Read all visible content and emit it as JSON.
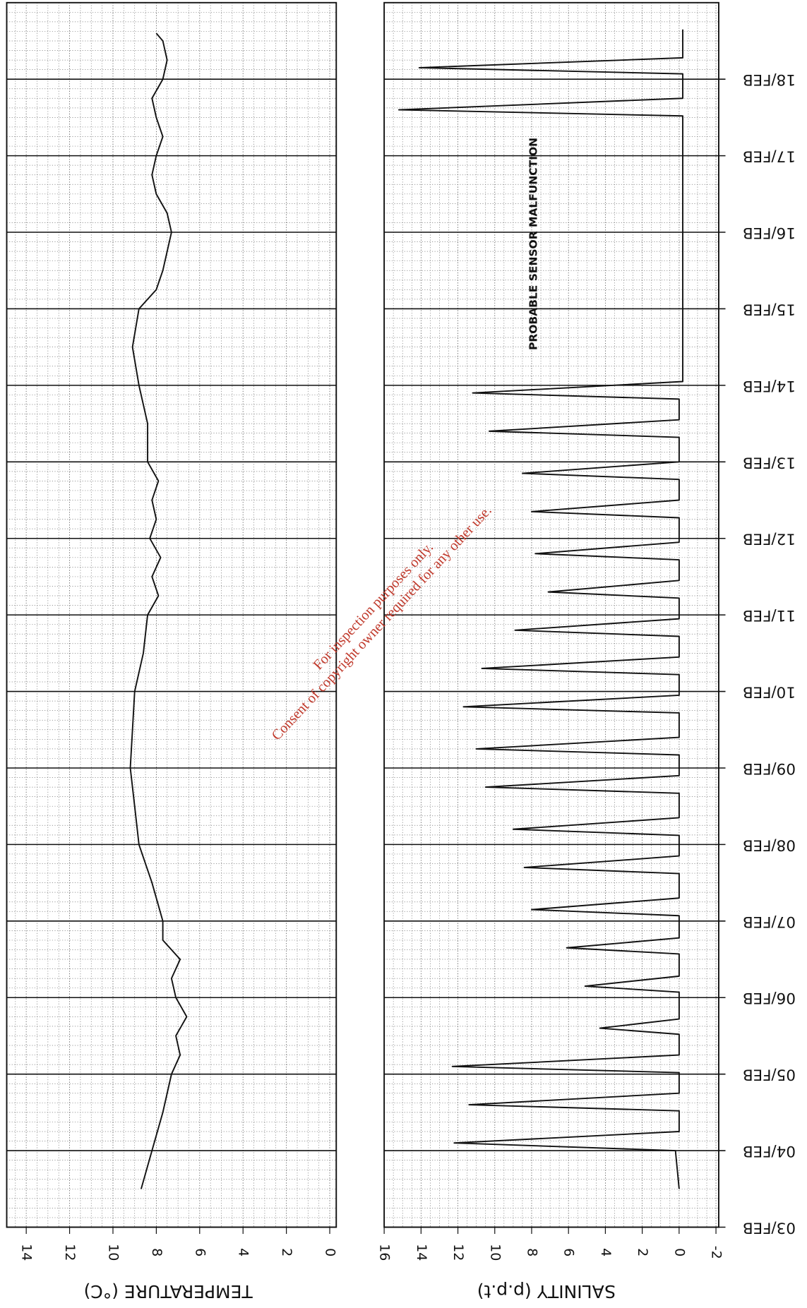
{
  "chart_data": [
    {
      "type": "line",
      "axis_title": "TEMPERATURE (°C)",
      "color": "#111111",
      "x": [
        3.5,
        4.0,
        4.5,
        5.0,
        5.25,
        5.5,
        5.75,
        6.0,
        6.25,
        6.5,
        6.75,
        7.0,
        7.5,
        8.0,
        8.5,
        9.0,
        9.5,
        10.0,
        10.5,
        11.0,
        11.25,
        11.5,
        11.75,
        12.0,
        12.25,
        12.5,
        12.75,
        13.0,
        13.5,
        14.0,
        14.5,
        15.0,
        15.25,
        15.5,
        16.0,
        16.25,
        16.5,
        16.75,
        17.0,
        17.25,
        17.5,
        17.75,
        18.0,
        18.25,
        18.5,
        18.6
      ],
      "values": [
        8.7,
        8.2,
        7.7,
        7.3,
        6.9,
        7.1,
        6.6,
        7.1,
        7.3,
        6.9,
        7.7,
        7.7,
        8.2,
        8.8,
        9.0,
        9.2,
        9.1,
        9.0,
        8.6,
        8.4,
        7.9,
        8.2,
        7.8,
        8.3,
        8.0,
        8.2,
        7.9,
        8.4,
        8.4,
        8.8,
        9.1,
        8.8,
        8.0,
        7.7,
        7.3,
        7.5,
        8.0,
        8.2,
        8.0,
        7.7,
        8.0,
        8.2,
        7.7,
        7.5,
        7.7,
        8.0
      ],
      "xlim": [
        3,
        19
      ],
      "xticks": [
        3,
        4,
        5,
        6,
        7,
        8,
        9,
        10,
        11,
        12,
        13,
        14,
        15,
        16,
        17,
        18
      ],
      "ylim": [
        -0.3,
        14.9
      ],
      "yticks": [
        0,
        2,
        4,
        6,
        8,
        10,
        12,
        14
      ],
      "grid": true
    },
    {
      "type": "line",
      "axis_title": "SALINITY (p.p.t)",
      "color": "#111111",
      "annotation": "PROBABLE SENSOR MALFUNCTION",
      "x": [
        3.5,
        4.0,
        4.1,
        4.25,
        4.52,
        4.6,
        4.75,
        5.02,
        5.1,
        5.25,
        5.52,
        5.6,
        5.72,
        6.07,
        6.15,
        6.28,
        6.57,
        6.65,
        6.78,
        7.07,
        7.15,
        7.3,
        7.62,
        7.7,
        7.85,
        8.12,
        8.2,
        8.35,
        8.67,
        8.75,
        8.9,
        9.17,
        9.25,
        9.4,
        9.72,
        9.8,
        9.95,
        10.22,
        10.3,
        10.45,
        10.72,
        10.8,
        10.95,
        11.22,
        11.3,
        11.45,
        11.72,
        11.8,
        11.95,
        12.27,
        12.35,
        12.5,
        12.77,
        12.85,
        13.0,
        13.32,
        13.4,
        13.55,
        13.82,
        13.9,
        14.05,
        17.52,
        17.6,
        17.75,
        18.07,
        18.15,
        18.28,
        18.65
      ],
      "values": [
        0,
        0.2,
        12.2,
        0,
        0,
        11.4,
        0,
        0,
        12.3,
        0,
        0,
        4.3,
        0,
        0,
        5.1,
        0,
        0,
        6.1,
        0,
        0,
        8.0,
        0,
        0,
        8.4,
        0,
        0,
        9.0,
        0,
        0,
        10.5,
        0,
        0,
        11.0,
        0,
        0,
        11.7,
        0,
        0,
        10.7,
        0,
        0,
        8.9,
        0,
        0,
        7.1,
        0,
        0,
        7.8,
        0,
        0,
        8.0,
        0,
        0,
        8.5,
        0,
        0,
        10.3,
        0,
        0,
        11.2,
        -0.2,
        -0.2,
        15.2,
        -0.2,
        -0.2,
        14.1,
        -0.2,
        -0.2
      ],
      "xlim": [
        3,
        19
      ],
      "xticks": [
        {
          "value": 3,
          "label": "03/FEB"
        },
        {
          "value": 4,
          "label": "04/FEB"
        },
        {
          "value": 5,
          "label": "05/FEB"
        },
        {
          "value": 6,
          "label": "06/FEB"
        },
        {
          "value": 7,
          "label": "07/FEB"
        },
        {
          "value": 8,
          "label": "08/FEB"
        },
        {
          "value": 9,
          "label": "09/FEB"
        },
        {
          "value": 10,
          "label": "10/FEB"
        },
        {
          "value": 11,
          "label": "11/FEB"
        },
        {
          "value": 12,
          "label": "12/FEB"
        },
        {
          "value": 13,
          "label": "13/FEB"
        },
        {
          "value": 14,
          "label": "14/FEB"
        },
        {
          "value": 15,
          "label": "15/FEB"
        },
        {
          "value": 16,
          "label": "16/FEB"
        },
        {
          "value": 17,
          "label": "17/FEB"
        },
        {
          "value": 18,
          "label": "18/FEB"
        }
      ],
      "ylim": [
        -2.15,
        16
      ],
      "yticks": [
        -2,
        0,
        2,
        4,
        6,
        8,
        10,
        12,
        14,
        16
      ],
      "grid": true
    }
  ],
  "watermark": {
    "line1": "For inspection purposes only.",
    "line2": "Consent of copyright owner required for any other use."
  }
}
